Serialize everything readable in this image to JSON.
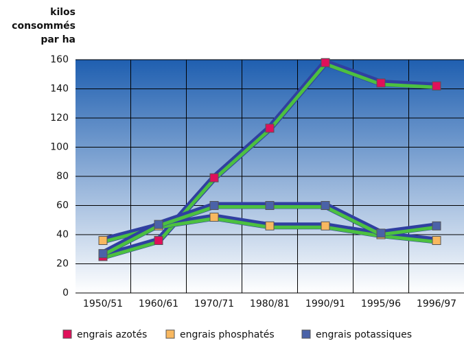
{
  "chart_data": {
    "type": "line",
    "y_label_lines": [
      "kilos",
      "consommés",
      "par ha"
    ],
    "categories": [
      "1950/51",
      "1960/61",
      "1970/71",
      "1980/81",
      "1990/91",
      "1995/96",
      "1996/97"
    ],
    "series": [
      {
        "name": "engrais azotés",
        "color": "#e0105a",
        "values": [
          25,
          36,
          79,
          113,
          158,
          144,
          142
        ]
      },
      {
        "name": "engrais phosphatés",
        "color": "#f8b860",
        "values": [
          36,
          46,
          52,
          46,
          46,
          40,
          36
        ]
      },
      {
        "name": "engrais potassiques",
        "color": "#4a62a8",
        "values": [
          27,
          47,
          60,
          60,
          60,
          41,
          46
        ]
      }
    ],
    "ylim": [
      0,
      160
    ],
    "yticks": [
      0,
      20,
      40,
      60,
      80,
      100,
      120,
      140,
      160
    ],
    "grid": true
  }
}
